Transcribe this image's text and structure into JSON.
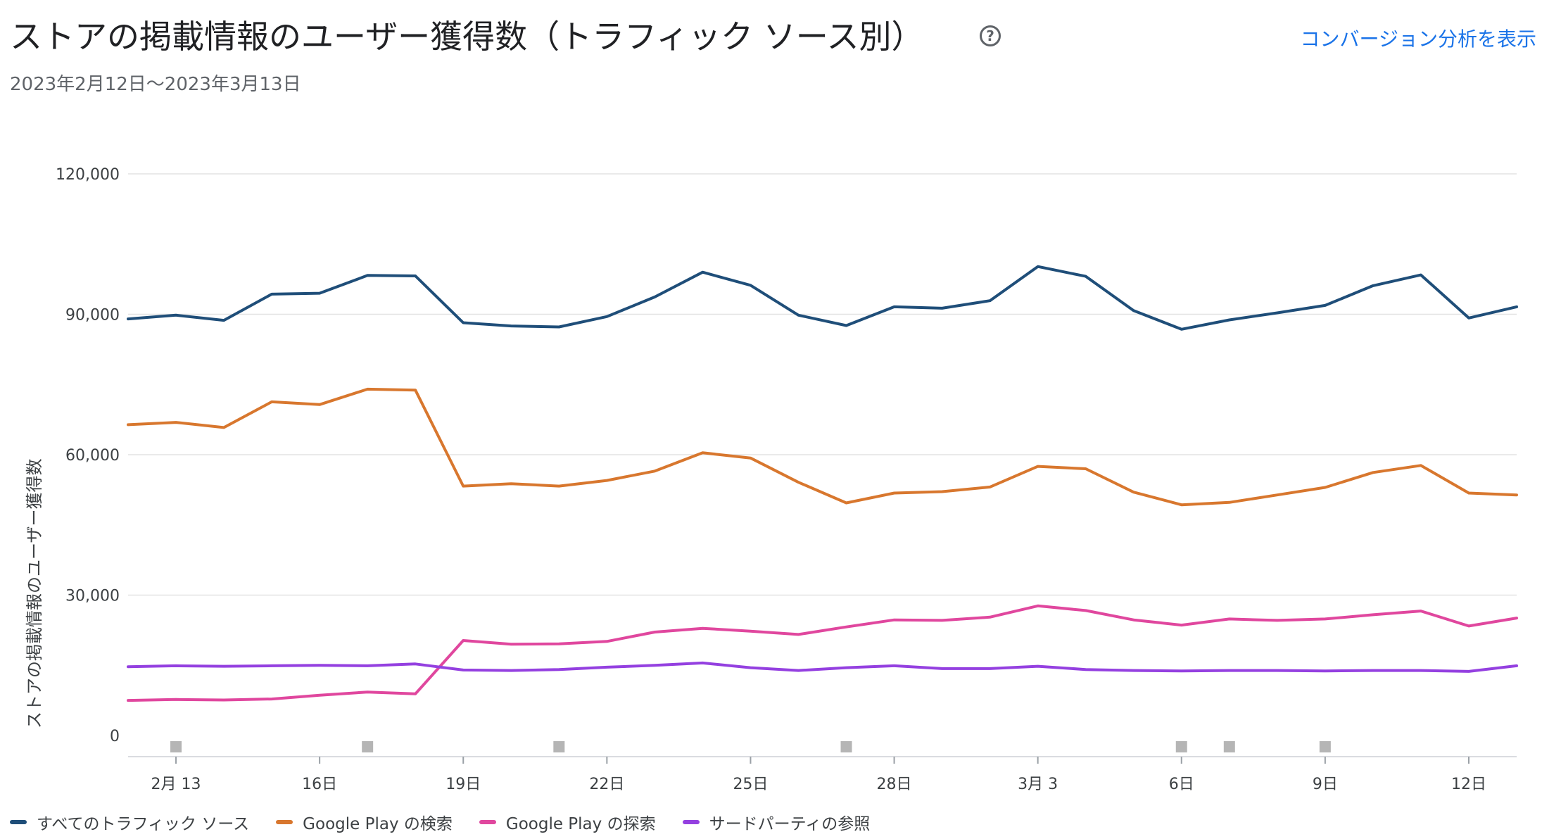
{
  "header": {
    "title": "ストアの掲載情報のユーザー獲得数（トラフィック ソース別）",
    "help_icon": "help-circle-icon",
    "link_label": "コンバージョン分析を表示",
    "subtitle": "2023年2月12日〜2023年3月13日"
  },
  "colors": {
    "all": "#1f4e79",
    "search": "#d8772e",
    "explore": "#e0479e",
    "third_party": "#9440e0",
    "grid": "#e3e3e3",
    "axis_text": "#3c4043",
    "marker": "#b5b5b5",
    "link": "#1a73e8"
  },
  "chart_data": {
    "type": "line",
    "title": "",
    "xlabel": "",
    "ylabel": "ストアの掲載情報のユーザー獲得数",
    "ylim": [
      0,
      120000
    ],
    "yticks": [
      0,
      30000,
      60000,
      90000,
      120000
    ],
    "ytick_labels": [
      "0",
      "30,000",
      "60,000",
      "90,000",
      "120,000"
    ],
    "grid": true,
    "legend_position": "bottom-left",
    "x": [
      "2023-02-12",
      "2023-02-13",
      "2023-02-14",
      "2023-02-15",
      "2023-02-16",
      "2023-02-17",
      "2023-02-18",
      "2023-02-19",
      "2023-02-20",
      "2023-02-21",
      "2023-02-22",
      "2023-02-23",
      "2023-02-24",
      "2023-02-25",
      "2023-02-26",
      "2023-02-27",
      "2023-02-28",
      "2023-03-01",
      "2023-03-02",
      "2023-03-03",
      "2023-03-04",
      "2023-03-05",
      "2023-03-06",
      "2023-03-07",
      "2023-03-08",
      "2023-03-09",
      "2023-03-10",
      "2023-03-11",
      "2023-03-12",
      "2023-03-13"
    ],
    "xticks": [
      {
        "date": "2023-02-13",
        "label": "2月 13"
      },
      {
        "date": "2023-02-16",
        "label": "16日"
      },
      {
        "date": "2023-02-19",
        "label": "19日"
      },
      {
        "date": "2023-02-22",
        "label": "22日"
      },
      {
        "date": "2023-02-25",
        "label": "25日"
      },
      {
        "date": "2023-02-28",
        "label": "28日"
      },
      {
        "date": "2023-03-03",
        "label": "3月 3"
      },
      {
        "date": "2023-03-06",
        "label": "6日"
      },
      {
        "date": "2023-03-09",
        "label": "9日"
      },
      {
        "date": "2023-03-12",
        "label": "12日"
      }
    ],
    "event_markers": [
      "2023-02-13",
      "2023-02-17",
      "2023-02-21",
      "2023-02-27",
      "2023-03-06",
      "2023-03-07",
      "2023-03-09"
    ],
    "series": [
      {
        "name": "すべてのトラフィック ソース",
        "color_key": "all",
        "values": [
          89000,
          89800,
          88700,
          94300,
          94500,
          98300,
          98200,
          88200,
          87500,
          87300,
          89500,
          93700,
          99000,
          96200,
          89800,
          87600,
          91600,
          91300,
          92900,
          100200,
          98100,
          90800,
          86800,
          88800,
          90300,
          91900,
          96100,
          98400,
          89200,
          91600
        ]
      },
      {
        "name": "Google Play の検索",
        "color_key": "search",
        "values": [
          66400,
          66900,
          65800,
          71300,
          70700,
          74000,
          73800,
          53300,
          53800,
          53300,
          54500,
          56500,
          60400,
          59300,
          54100,
          49700,
          51800,
          52100,
          53100,
          57500,
          57000,
          52000,
          49300,
          49800,
          51400,
          53000,
          56200,
          57700,
          51800,
          51400
        ]
      },
      {
        "name": "Google Play の探索",
        "color_key": "explore",
        "values": [
          7500,
          7700,
          7600,
          7800,
          8600,
          9300,
          8900,
          20300,
          19500,
          19600,
          20100,
          22100,
          22900,
          22300,
          21600,
          23200,
          24700,
          24600,
          25300,
          27700,
          26700,
          24700,
          23600,
          24900,
          24600,
          24900,
          25800,
          26600,
          23400,
          25100
        ]
      },
      {
        "name": "サードパーティの参照",
        "color_key": "third_party",
        "values": [
          14700,
          14900,
          14800,
          14900,
          15000,
          14900,
          15300,
          14000,
          13900,
          14100,
          14600,
          15000,
          15500,
          14500,
          13900,
          14500,
          14900,
          14300,
          14300,
          14800,
          14100,
          13900,
          13800,
          13900,
          13900,
          13800,
          13900,
          13900,
          13700,
          14900
        ]
      }
    ]
  }
}
